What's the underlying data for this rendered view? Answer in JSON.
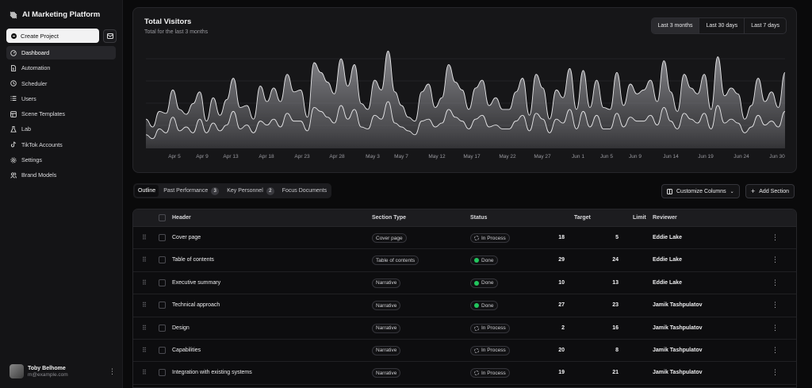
{
  "sidebar": {
    "brand": "AI Marketing Platform",
    "create_label": "Create Project",
    "items": [
      {
        "label": "Dashboard",
        "icon": "gauge-icon",
        "active": true
      },
      {
        "label": "Automation",
        "icon": "file-bolt-icon"
      },
      {
        "label": "Scheduler",
        "icon": "clock-icon"
      },
      {
        "label": "Users",
        "icon": "list-icon"
      },
      {
        "label": "Scene Templates",
        "icon": "template-icon"
      },
      {
        "label": "Lab",
        "icon": "flask-icon"
      },
      {
        "label": "TikTok Accounts",
        "icon": "tiktok-icon"
      },
      {
        "label": "Settings",
        "icon": "gear-icon"
      },
      {
        "label": "Brand Models",
        "icon": "people-icon"
      }
    ],
    "user": {
      "name": "Toby Belhome",
      "email": "m@example.com"
    }
  },
  "chart": {
    "title": "Total Visitors",
    "subtitle": "Total for the last 3 months",
    "ranges": [
      "Last 3 months",
      "Last 30 days",
      "Last 7 days"
    ],
    "active_range": "Last 3 months",
    "colors": {
      "desktop": "#8e8e93",
      "mobile": "#5c5c60",
      "line": "#e5e5e7"
    }
  },
  "chart_data": {
    "type": "area",
    "x_ticks": [
      "Apr 5",
      "Apr 9",
      "Apr 13",
      "Apr 18",
      "Apr 23",
      "Apr 28",
      "May 3",
      "May 7",
      "May 12",
      "May 17",
      "May 22",
      "May 27",
      "Jun 1",
      "Jun 5",
      "Jun 9",
      "Jun 14",
      "Jun 19",
      "Jun 24",
      "Jun 30"
    ],
    "grid": "horizontal",
    "series": [
      {
        "values": [
          30,
          22,
          38,
          36,
          60,
          40,
          35,
          46,
          58,
          28,
          52,
          34,
          50,
          72,
          42,
          44,
          30,
          64,
          48,
          62,
          48,
          76,
          58,
          60,
          32,
          88,
          78,
          68,
          56,
          92,
          64,
          86,
          46,
          40,
          70,
          60,
          100,
          58,
          44,
          32,
          28,
          58,
          66,
          42,
          52,
          86,
          68,
          60,
          40,
          62,
          70,
          44,
          52,
          40,
          40,
          58,
          72,
          34,
          76,
          62,
          30,
          60,
          52,
          82,
          40,
          80,
          42,
          70,
          42,
          40,
          78,
          44,
          66,
          56,
          60,
          70,
          48,
          90,
          58,
          38,
          76,
          62,
          56,
          76,
          40,
          94,
          54,
          62,
          56,
          30,
          44,
          72,
          48,
          58,
          42,
          78
        ]
      },
      {
        "values": [
          14,
          10,
          20,
          16,
          32,
          18,
          22,
          16,
          30,
          16,
          26,
          18,
          24,
          38,
          20,
          24,
          16,
          28,
          24,
          30,
          22,
          36,
          28,
          28,
          18,
          42,
          38,
          32,
          26,
          44,
          30,
          40,
          22,
          20,
          34,
          30,
          48,
          26,
          22,
          18,
          14,
          28,
          30,
          22,
          26,
          40,
          32,
          28,
          20,
          30,
          34,
          22,
          24,
          20,
          20,
          28,
          34,
          18,
          36,
          30,
          16,
          30,
          26,
          40,
          20,
          38,
          22,
          34,
          20,
          20,
          36,
          22,
          32,
          28,
          28,
          34,
          24,
          42,
          28,
          20,
          36,
          30,
          26,
          36,
          20,
          44,
          26,
          30,
          26,
          16,
          22,
          34,
          24,
          28,
          22,
          38
        ]
      }
    ]
  },
  "tabs": [
    {
      "label": "Outline",
      "active": true
    },
    {
      "label": "Past Performance",
      "badge": "3"
    },
    {
      "label": "Key Personnel",
      "badge": "2"
    },
    {
      "label": "Focus Documents"
    }
  ],
  "actions": {
    "customize": "Customize Columns",
    "add": "Add Section"
  },
  "table": {
    "headers": {
      "header": "Header",
      "type": "Section Type",
      "status": "Status",
      "target": "Target",
      "limit": "Limit",
      "reviewer": "Reviewer"
    },
    "rows": [
      {
        "header": "Cover page",
        "type": "Cover page",
        "status": "In Process",
        "done": false,
        "target": "18",
        "limit": "5",
        "reviewer": "Eddie Lake"
      },
      {
        "header": "Table of contents",
        "type": "Table of contents",
        "status": "Done",
        "done": true,
        "target": "29",
        "limit": "24",
        "reviewer": "Eddie Lake"
      },
      {
        "header": "Executive summary",
        "type": "Narrative",
        "status": "Done",
        "done": true,
        "target": "10",
        "limit": "13",
        "reviewer": "Eddie Lake"
      },
      {
        "header": "Technical approach",
        "type": "Narrative",
        "status": "Done",
        "done": true,
        "target": "27",
        "limit": "23",
        "reviewer": "Jamik Tashpulatov"
      },
      {
        "header": "Design",
        "type": "Narrative",
        "status": "In Process",
        "done": false,
        "target": "2",
        "limit": "16",
        "reviewer": "Jamik Tashpulatov"
      },
      {
        "header": "Capabilities",
        "type": "Narrative",
        "status": "In Process",
        "done": false,
        "target": "20",
        "limit": "8",
        "reviewer": "Jamik Tashpulatov"
      },
      {
        "header": "Integration with existing systems",
        "type": "Narrative",
        "status": "In Process",
        "done": false,
        "target": "19",
        "limit": "21",
        "reviewer": "Jamik Tashpulatov"
      }
    ]
  }
}
